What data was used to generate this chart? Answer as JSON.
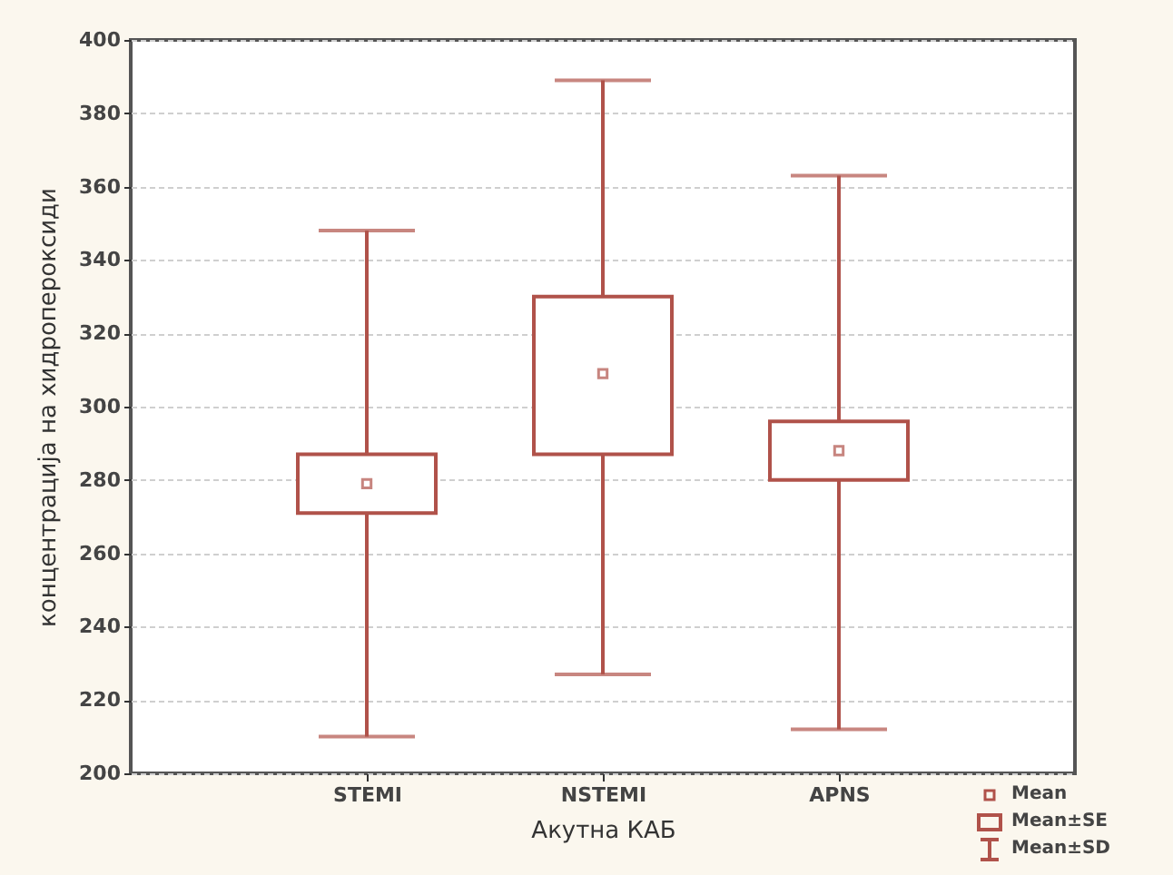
{
  "chart_data": {
    "type": "box",
    "xlabel": "Акутна КАБ",
    "ylabel": "концентрација на хидропероксиди",
    "categories": [
      "STEMI",
      "NSTEMI",
      "APNS"
    ],
    "color": "#b0524a",
    "boxes": [
      {
        "low": 210,
        "q1": 271,
        "q3": 287,
        "high": 348,
        "mean": 279
      },
      {
        "low": 227,
        "q1": 287,
        "q3": 330,
        "high": 389,
        "mean": 309
      },
      {
        "low": 212,
        "q1": 280,
        "q3": 296,
        "high": 363,
        "mean": 288
      }
    ],
    "annotations": [
      "Mean",
      "Mean±SE",
      "Mean±SD"
    ],
    "ylim": [
      200,
      400
    ],
    "yticks": [
      200,
      220,
      240,
      260,
      280,
      300,
      320,
      340,
      360,
      380,
      400
    ],
    "grid": "y"
  }
}
